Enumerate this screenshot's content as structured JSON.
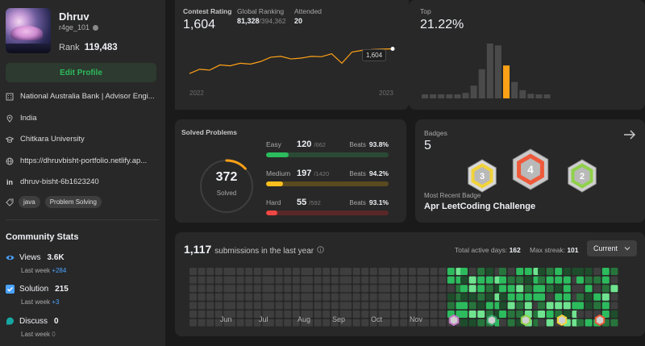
{
  "profile": {
    "name": "Dhruv",
    "handle": "r4ge_101",
    "rank_label": "Rank",
    "rank_value": "119,483",
    "edit_label": "Edit Profile",
    "company": "National Australia Bank | Advisor Engi...",
    "location": "India",
    "school": "Chitkara University",
    "website": "https://dhruvbisht-portfolio.netlify.ap...",
    "linkedin": "dhruv-bisht-6b1623240",
    "tags": [
      "java",
      "Problem Solving"
    ]
  },
  "community": {
    "title": "Community Stats",
    "stats": [
      {
        "label": "Views",
        "value": "3.6K",
        "week_label": "Last week",
        "week_value": "+284",
        "color": "#4aa3ff"
      },
      {
        "label": "Solution",
        "value": "215",
        "week_label": "Last week",
        "week_value": "+3",
        "color": "#4aa3ff"
      },
      {
        "label": "Discuss",
        "value": "0",
        "week_label": "Last week",
        "week_value": "0",
        "color": "#16a7a2"
      }
    ]
  },
  "contest": {
    "rating_label": "Contest Rating",
    "rating": "1,604",
    "global_label": "Global Ranking",
    "global_value": "81,328",
    "global_total": "/394,362",
    "attended_label": "Attended",
    "attended": "20",
    "tooltip": "1,604",
    "year_start": "2022",
    "year_end": "2023",
    "line": [
      1460,
      1485,
      1480,
      1510,
      1505,
      1520,
      1515,
      1530,
      1555,
      1560,
      1545,
      1550,
      1560,
      1558,
      1575,
      1520,
      1585,
      1595,
      1600,
      1602,
      1604
    ],
    "line_range": [
      1400,
      1700
    ],
    "line_color": "#ffa116"
  },
  "top": {
    "label": "Top",
    "percent": "21.22%",
    "bars": [
      2,
      2,
      2,
      3,
      4,
      6,
      14,
      32,
      60,
      58,
      36,
      18,
      9,
      5,
      3,
      2
    ],
    "highlight_index": 10,
    "highlight_color": "#ffa116",
    "bar_color": "#4a4a4a"
  },
  "solved": {
    "title": "Solved Problems",
    "total": "372",
    "total_label": "Solved",
    "ring_color": "#ffa116",
    "ring_fraction": 0.13,
    "items": [
      {
        "name": "Easy",
        "count": "120",
        "total": "/662",
        "beats_label": "Beats",
        "beats": "93.8%",
        "fraction": 0.181,
        "color": "#2cbb5d",
        "track": "#2a4a35"
      },
      {
        "name": "Medium",
        "count": "197",
        "total": "/1420",
        "beats_label": "Beats",
        "beats": "94.2%",
        "fraction": 0.139,
        "color": "#ffc01e",
        "track": "#5a4a1f"
      },
      {
        "name": "Hard",
        "count": "55",
        "total": "/592",
        "beats_label": "Beats",
        "beats": "93.1%",
        "fraction": 0.093,
        "color": "#ef4743",
        "track": "#5a2727"
      }
    ]
  },
  "badges": {
    "label": "Badges",
    "count": "5",
    "recent_label": "Most Recent Badge",
    "recent_name": "Apr LeetCoding Challenge",
    "arrow_icon": "arrow-right-icon",
    "items": [
      {
        "text": "3",
        "accent": "#f2d23a",
        "face": "#d9d9d9"
      },
      {
        "text": "4",
        "accent": "#ef5a3a",
        "face": "#c9c9c9"
      },
      {
        "text": "2",
        "accent": "#8fd14a",
        "face": "#cfcfcf"
      }
    ]
  },
  "submissions": {
    "count": "1,117",
    "label": "submissions in the last year",
    "active_label": "Total active days:",
    "active_value": "162",
    "streak_label": "Max streak:",
    "streak_value": "101",
    "dropdown": "Current",
    "months": [
      "Jun",
      "Jul",
      "Aug",
      "Sep",
      "Oct",
      "Nov"
    ],
    "badge_icons": [
      "#c27bc4",
      "#3aa86b",
      "#8fd14a",
      "#f2d23a",
      "#ef5a3a"
    ],
    "empty_color": "#3e3e3e",
    "levels": [
      "#3e3e3e",
      "#1d4d2b",
      "#27753c",
      "#2cbb5d",
      "#6fe38f"
    ]
  }
}
